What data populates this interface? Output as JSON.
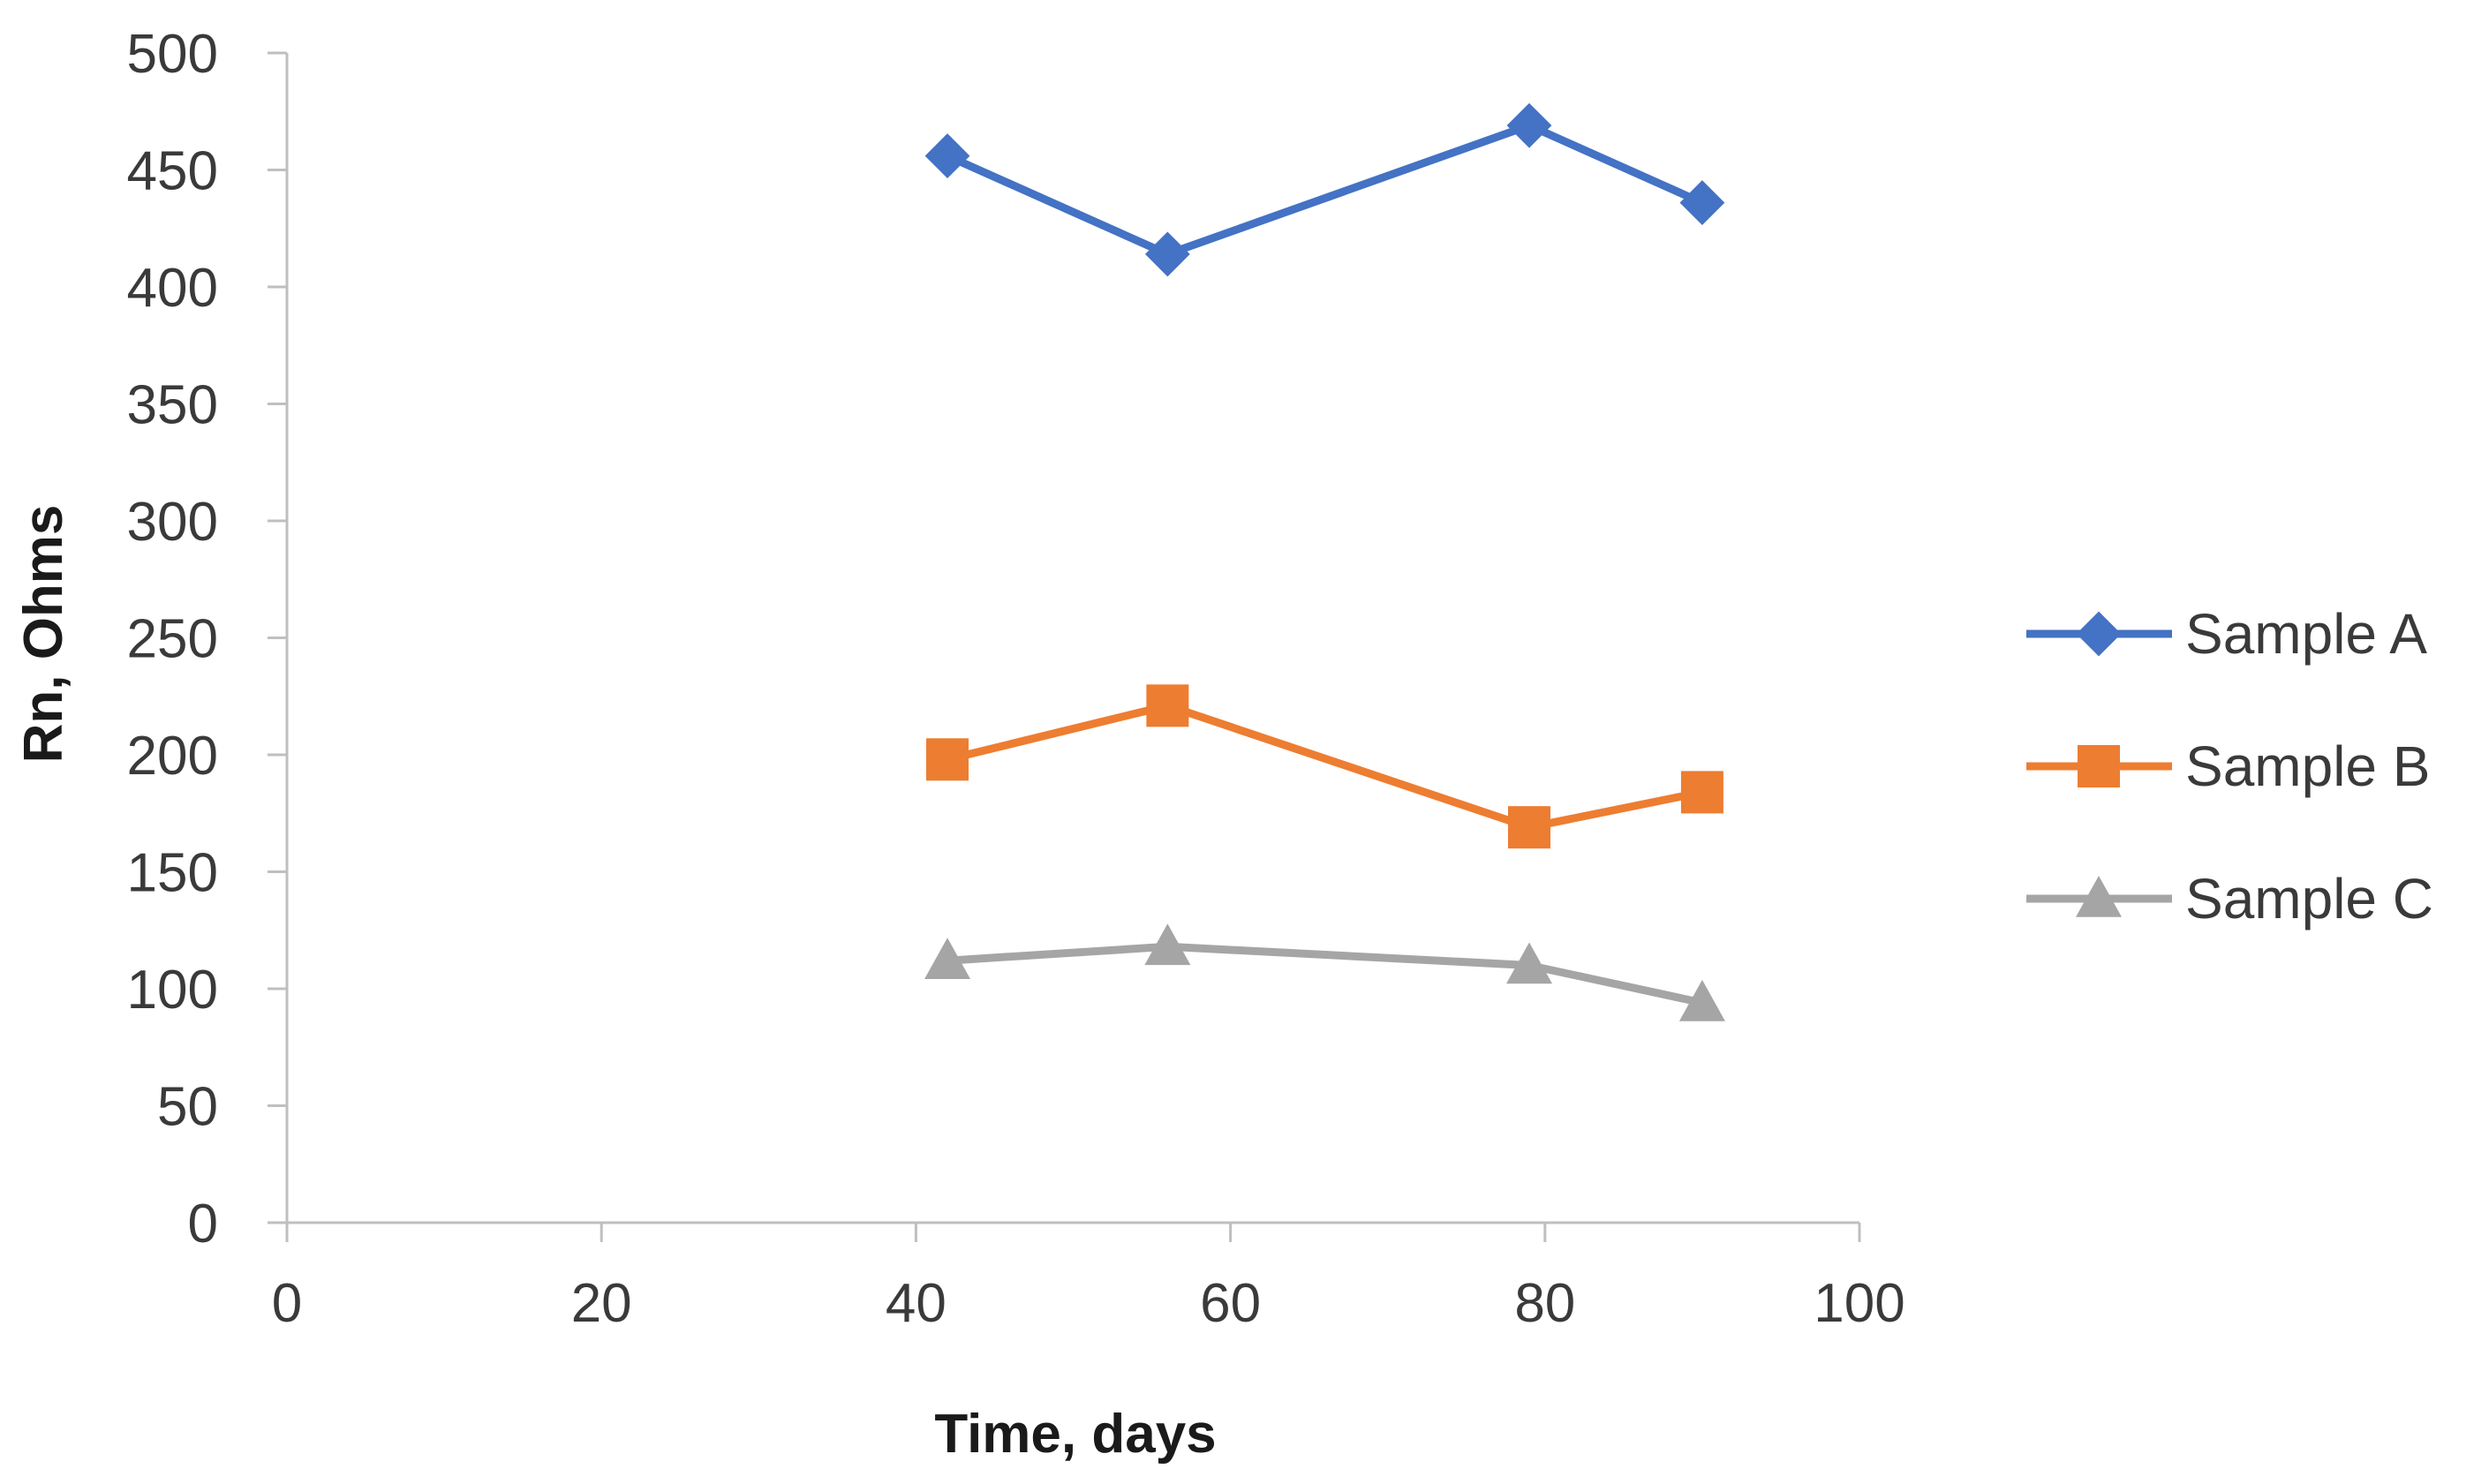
{
  "chart_data": {
    "type": "line",
    "title": "",
    "xlabel": "Time, days",
    "ylabel": "Rn, Ohms",
    "xlim": [
      0,
      100
    ],
    "ylim": [
      0,
      500
    ],
    "xticks": [
      0,
      20,
      40,
      60,
      80,
      100
    ],
    "yticks": [
      0,
      50,
      100,
      150,
      200,
      250,
      300,
      350,
      400,
      450,
      500
    ],
    "grid": false,
    "legend_position": "right",
    "series": [
      {
        "name": "Sample A",
        "color": "#4472C4",
        "marker": "diamond",
        "x": [
          42,
          56,
          79,
          90
        ],
        "y": [
          456,
          414,
          469,
          436
        ]
      },
      {
        "name": "Sample B",
        "color": "#ED7D31",
        "marker": "square",
        "x": [
          42,
          56,
          79,
          90
        ],
        "y": [
          198,
          221,
          169,
          184
        ]
      },
      {
        "name": "Sample C",
        "color": "#A5A5A5",
        "marker": "triangle",
        "x": [
          42,
          56,
          79,
          90
        ],
        "y": [
          112,
          118,
          110,
          94
        ]
      }
    ]
  }
}
